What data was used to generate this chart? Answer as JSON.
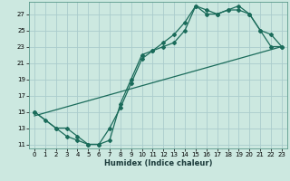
{
  "title": "",
  "xlabel": "Humidex (Indice chaleur)",
  "bg_color": "#cce8e0",
  "grid_color": "#aacccc",
  "line_color": "#1a6b5a",
  "xlim": [
    -0.5,
    23.5
  ],
  "ylim": [
    10.5,
    28.5
  ],
  "xticks": [
    0,
    1,
    2,
    3,
    4,
    5,
    6,
    7,
    8,
    9,
    10,
    11,
    12,
    13,
    14,
    15,
    16,
    17,
    18,
    19,
    20,
    21,
    22,
    23
  ],
  "yticks": [
    11,
    13,
    15,
    17,
    19,
    21,
    23,
    25,
    27
  ],
  "line1_x": [
    0,
    1,
    2,
    3,
    4,
    5,
    6,
    7,
    8,
    9,
    10,
    11,
    12,
    13,
    14,
    15,
    16,
    17,
    18,
    19,
    20,
    21,
    22,
    23
  ],
  "line1_y": [
    15,
    14,
    13,
    12,
    11.5,
    11,
    11,
    13,
    15.5,
    18.5,
    21.5,
    22.5,
    23,
    23.5,
    25,
    28,
    27.5,
    27,
    27.5,
    28,
    27,
    25,
    23,
    23
  ],
  "line2_x": [
    0,
    2,
    3,
    4,
    5,
    6,
    7,
    8,
    9,
    10,
    11,
    12,
    13,
    14,
    15,
    16,
    17,
    18,
    19,
    20,
    21,
    22,
    23
  ],
  "line2_y": [
    15,
    13,
    13,
    12,
    11,
    11,
    11.5,
    16,
    19,
    22,
    22.5,
    23.5,
    24.5,
    26,
    28,
    27,
    27,
    27.5,
    27.5,
    27,
    25,
    24.5,
    23
  ],
  "line3_x": [
    0,
    23
  ],
  "line3_y": [
    14.5,
    23
  ],
  "xlabel_fontsize": 6,
  "tick_fontsize": 5,
  "lw": 0.9,
  "ms": 2.0
}
